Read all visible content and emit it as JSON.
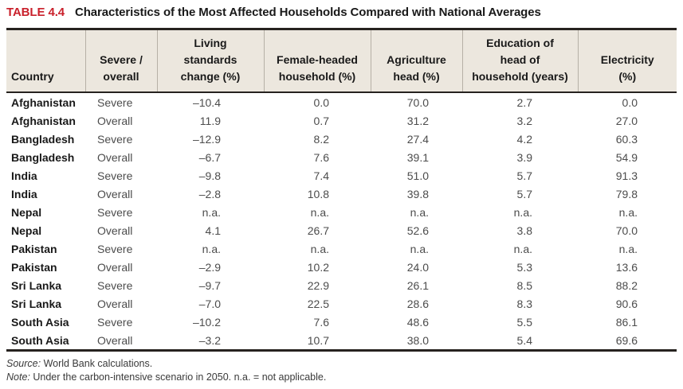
{
  "title": {
    "label": "TABLE 4.4",
    "text": "Characteristics of the Most Affected Households Compared with National Averages"
  },
  "table": {
    "columns": [
      {
        "lines": [
          "Country"
        ]
      },
      {
        "lines": [
          "Severe /",
          "overall"
        ]
      },
      {
        "lines": [
          "Living",
          "standards",
          "change (%)"
        ]
      },
      {
        "lines": [
          "Female-headed",
          "household (%)"
        ]
      },
      {
        "lines": [
          "Agriculture",
          "head (%)"
        ]
      },
      {
        "lines": [
          "Education of",
          "head of",
          "household (years)"
        ]
      },
      {
        "lines": [
          "Electricity",
          "(%)"
        ]
      }
    ],
    "rows": [
      {
        "country": "Afghanistan",
        "scenario": "Severe",
        "values": [
          "–10.4",
          "0.0",
          "70.0",
          "2.7",
          "0.0"
        ]
      },
      {
        "country": "Afghanistan",
        "scenario": "Overall",
        "values": [
          "11.9",
          "0.7",
          "31.2",
          "3.2",
          "27.0"
        ]
      },
      {
        "country": "Bangladesh",
        "scenario": "Severe",
        "values": [
          "–12.9",
          "8.2",
          "27.4",
          "4.2",
          "60.3"
        ]
      },
      {
        "country": "Bangladesh",
        "scenario": "Overall",
        "values": [
          "–6.7",
          "7.6",
          "39.1",
          "3.9",
          "54.9"
        ]
      },
      {
        "country": "India",
        "scenario": "Severe",
        "values": [
          "–9.8",
          "7.4",
          "51.0",
          "5.7",
          "91.3"
        ]
      },
      {
        "country": "India",
        "scenario": "Overall",
        "values": [
          "–2.8",
          "10.8",
          "39.8",
          "5.7",
          "79.8"
        ]
      },
      {
        "country": "Nepal",
        "scenario": "Severe",
        "values": [
          "n.a.",
          "n.a.",
          "n.a.",
          "n.a.",
          "n.a."
        ]
      },
      {
        "country": "Nepal",
        "scenario": "Overall",
        "values": [
          "4.1",
          "26.7",
          "52.6",
          "3.8",
          "70.0"
        ]
      },
      {
        "country": "Pakistan",
        "scenario": "Severe",
        "values": [
          "n.a.",
          "n.a.",
          "n.a.",
          "n.a.",
          "n.a."
        ]
      },
      {
        "country": "Pakistan",
        "scenario": "Overall",
        "values": [
          "–2.9",
          "10.2",
          "24.0",
          "5.3",
          "13.6"
        ]
      },
      {
        "country": "Sri Lanka",
        "scenario": "Severe",
        "values": [
          "–9.7",
          "22.9",
          "26.1",
          "8.5",
          "88.2"
        ]
      },
      {
        "country": "Sri Lanka",
        "scenario": "Overall",
        "values": [
          "–7.0",
          "22.5",
          "28.6",
          "8.3",
          "90.6"
        ]
      },
      {
        "country": "South Asia",
        "scenario": "Severe",
        "values": [
          "–10.2",
          "7.6",
          "48.6",
          "5.5",
          "86.1"
        ]
      },
      {
        "country": "South Asia",
        "scenario": "Overall",
        "values": [
          "–3.2",
          "10.7",
          "38.0",
          "5.4",
          "69.6"
        ]
      }
    ]
  },
  "footnotes": [
    {
      "label": "Source:",
      "text": "World Bank calculations."
    },
    {
      "label": "Note:",
      "text": "Under the carbon-intensive scenario in 2050. n.a. = not applicable."
    }
  ],
  "colors": {
    "accent_red": "#c9202b",
    "header_bg": "#ece7de",
    "border_dark": "#26221f",
    "text_dark": "#191919",
    "text_gray": "#4c4c4c",
    "separator": "#b6b0a6"
  }
}
